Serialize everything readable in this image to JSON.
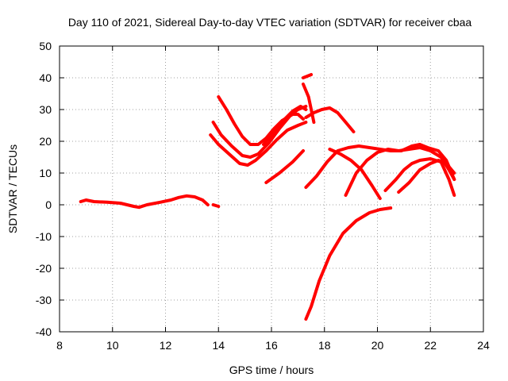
{
  "chart_data": {
    "type": "scatter",
    "title": "Day 110 of 2021, Sidereal Day-to-day VTEC variation (SDTVAR) for receiver cbaa",
    "xlabel": "GPS time / hours",
    "ylabel": "SDTVAR / TECUs",
    "xlim": [
      8,
      24
    ],
    "ylim": [
      -40,
      50
    ],
    "xticks": [
      "8",
      "10",
      "12",
      "14",
      "16",
      "18",
      "20",
      "22",
      "24"
    ],
    "yticks": [
      "-40",
      "-30",
      "-20",
      "-10",
      "0",
      "10",
      "20",
      "30",
      "40",
      "50"
    ],
    "grid": true,
    "color": "#ff0000",
    "series": [
      {
        "name": "arc-1",
        "points": [
          [
            8.8,
            1
          ],
          [
            9.0,
            1.5
          ],
          [
            9.3,
            1
          ],
          [
            9.8,
            0.8
          ],
          [
            10.3,
            0.5
          ],
          [
            10.8,
            -0.5
          ],
          [
            11.0,
            -0.8
          ],
          [
            11.3,
            0
          ],
          [
            11.8,
            0.8
          ],
          [
            12.2,
            1.5
          ],
          [
            12.5,
            2.3
          ],
          [
            12.8,
            2.8
          ],
          [
            13.1,
            2.5
          ],
          [
            13.4,
            1.5
          ],
          [
            13.6,
            0
          ]
        ]
      },
      {
        "name": "arc-2",
        "points": [
          [
            13.8,
            0
          ],
          [
            14.0,
            -0.5
          ]
        ]
      },
      {
        "name": "arc-3",
        "points": [
          [
            13.7,
            22
          ],
          [
            14.0,
            19
          ],
          [
            14.4,
            16
          ],
          [
            14.8,
            13
          ],
          [
            15.1,
            12.5
          ],
          [
            15.4,
            14
          ],
          [
            15.8,
            17
          ],
          [
            16.2,
            20.5
          ],
          [
            16.6,
            23.5
          ],
          [
            17.0,
            25
          ],
          [
            17.3,
            26
          ]
        ]
      },
      {
        "name": "arc-4",
        "points": [
          [
            13.8,
            26
          ],
          [
            14.1,
            22
          ],
          [
            14.5,
            18.5
          ],
          [
            14.9,
            15.5
          ],
          [
            15.2,
            15
          ],
          [
            15.5,
            16
          ],
          [
            15.9,
            19.5
          ],
          [
            16.3,
            24
          ],
          [
            16.7,
            28
          ],
          [
            17.0,
            30
          ],
          [
            17.3,
            31
          ]
        ]
      },
      {
        "name": "arc-5",
        "points": [
          [
            14.0,
            34
          ],
          [
            14.3,
            30
          ],
          [
            14.6,
            25.5
          ],
          [
            14.9,
            21.5
          ],
          [
            15.2,
            19
          ],
          [
            15.5,
            19
          ],
          [
            15.8,
            21
          ],
          [
            16.1,
            24
          ],
          [
            16.4,
            26.5
          ],
          [
            16.8,
            28.5
          ],
          [
            17.0,
            28.5
          ],
          [
            17.2,
            27
          ]
        ]
      },
      {
        "name": "arc-6",
        "points": [
          [
            15.7,
            19
          ],
          [
            16.1,
            23
          ],
          [
            16.5,
            27
          ],
          [
            16.8,
            29.5
          ],
          [
            17.1,
            31
          ],
          [
            17.3,
            30
          ]
        ]
      },
      {
        "name": "arc-7",
        "points": [
          [
            17.2,
            40
          ],
          [
            17.5,
            41
          ]
        ]
      },
      {
        "name": "arc-8",
        "points": [
          [
            17.2,
            38
          ],
          [
            17.4,
            34
          ],
          [
            17.5,
            30
          ],
          [
            17.6,
            26
          ]
        ]
      },
      {
        "name": "arc-9",
        "points": [
          [
            17.3,
            27.5
          ],
          [
            17.6,
            29
          ],
          [
            17.9,
            30
          ],
          [
            18.2,
            30.5
          ],
          [
            18.5,
            29
          ],
          [
            18.8,
            26
          ],
          [
            19.1,
            23
          ]
        ]
      },
      {
        "name": "arc-10",
        "points": [
          [
            15.8,
            7
          ],
          [
            16.3,
            10
          ],
          [
            16.8,
            13.5
          ],
          [
            17.2,
            17
          ]
        ]
      },
      {
        "name": "arc-11",
        "points": [
          [
            17.3,
            -36
          ],
          [
            17.5,
            -32
          ],
          [
            17.8,
            -24
          ],
          [
            18.2,
            -16
          ],
          [
            18.7,
            -9
          ],
          [
            19.2,
            -5
          ],
          [
            19.7,
            -2.5
          ],
          [
            20.1,
            -1.5
          ],
          [
            20.5,
            -1
          ]
        ]
      },
      {
        "name": "arc-12",
        "points": [
          [
            17.3,
            5.5
          ],
          [
            17.7,
            9
          ],
          [
            18.1,
            13.5
          ],
          [
            18.5,
            17
          ],
          [
            18.9,
            18
          ],
          [
            19.3,
            18.5
          ],
          [
            19.7,
            18
          ],
          [
            20.1,
            17.5
          ],
          [
            20.5,
            17
          ],
          [
            20.9,
            17
          ],
          [
            21.3,
            18.5
          ],
          [
            21.6,
            19
          ],
          [
            21.9,
            18
          ],
          [
            22.3,
            17
          ],
          [
            22.6,
            14
          ],
          [
            22.9,
            8
          ]
        ]
      },
      {
        "name": "arc-13",
        "points": [
          [
            18.2,
            17.5
          ],
          [
            18.6,
            16
          ],
          [
            19.0,
            14
          ],
          [
            19.4,
            11
          ],
          [
            19.8,
            6
          ],
          [
            20.1,
            2
          ]
        ]
      },
      {
        "name": "arc-14",
        "points": [
          [
            18.8,
            3
          ],
          [
            19.2,
            10
          ],
          [
            19.6,
            14
          ],
          [
            20.0,
            16.5
          ],
          [
            20.4,
            17.5
          ],
          [
            20.8,
            17
          ],
          [
            21.2,
            17.5
          ],
          [
            21.6,
            18
          ],
          [
            22.0,
            17
          ],
          [
            22.4,
            15
          ],
          [
            22.7,
            11
          ],
          [
            22.9,
            8
          ]
        ]
      },
      {
        "name": "arc-15",
        "points": [
          [
            20.3,
            4.5
          ],
          [
            20.7,
            8
          ],
          [
            21.0,
            11
          ],
          [
            21.3,
            13
          ],
          [
            21.6,
            14
          ],
          [
            22.0,
            14.5
          ],
          [
            22.4,
            13.5
          ],
          [
            22.7,
            8
          ],
          [
            22.9,
            3
          ]
        ]
      },
      {
        "name": "arc-16",
        "points": [
          [
            20.8,
            4
          ],
          [
            21.2,
            7
          ],
          [
            21.6,
            11
          ],
          [
            22.0,
            13
          ],
          [
            22.3,
            14
          ],
          [
            22.6,
            13
          ],
          [
            22.9,
            10
          ]
        ]
      }
    ]
  }
}
